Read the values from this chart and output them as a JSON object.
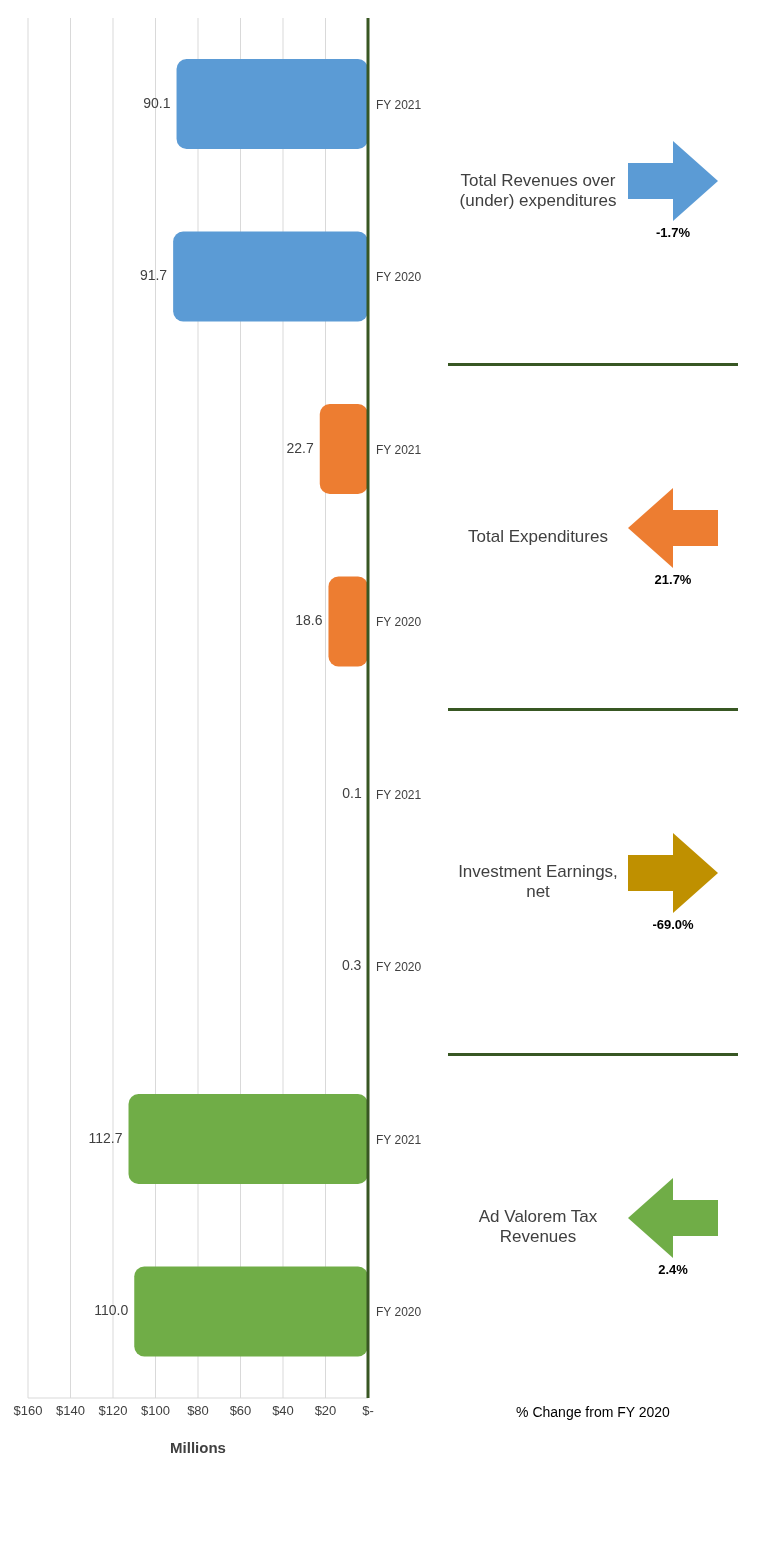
{
  "chart_data": {
    "type": "bar",
    "orientation": "horizontal",
    "xlabel": "Millions",
    "categories": [
      "FY 2021",
      "FY 2020",
      "FY 2021",
      "FY 2020",
      "FY 2021",
      "FY 2020",
      "FY 2021",
      "FY 2020"
    ],
    "values": [
      90.1,
      91.7,
      22.7,
      18.6,
      0.1,
      0.3,
      112.7,
      110.0
    ],
    "value_labels": [
      "90.1",
      "91.7",
      "22.7",
      "18.6",
      "0.1",
      "0.3",
      "112.7",
      "110.0"
    ],
    "colors": [
      "#5b9bd5",
      "#5b9bd5",
      "#ed7d31",
      "#ed7d31",
      "#bf9000",
      "#bf9000",
      "#70ad47",
      "#70ad47"
    ],
    "xlim": [
      160,
      0
    ],
    "xticks": [
      {
        "value": 0,
        "label": "$-"
      },
      {
        "value": 20,
        "label": "$20"
      },
      {
        "value": 40,
        "label": "$40"
      },
      {
        "value": 60,
        "label": "$60"
      },
      {
        "value": 80,
        "label": "$80"
      },
      {
        "value": 100,
        "label": "$100"
      },
      {
        "value": 120,
        "label": "$120"
      },
      {
        "value": 140,
        "label": "$140"
      },
      {
        "value": 160,
        "label": "$160"
      }
    ],
    "grid": "x",
    "legend": false,
    "annotations": [
      "% Change from FY 2020",
      "Total Revenues over (under) expenditures",
      "-1.7%",
      "Total Expenditures",
      "21.7%",
      "Investment Earnings, net",
      "-69.0%",
      "Ad Valorem Tax Revenues",
      "2.4%"
    ]
  }
}
